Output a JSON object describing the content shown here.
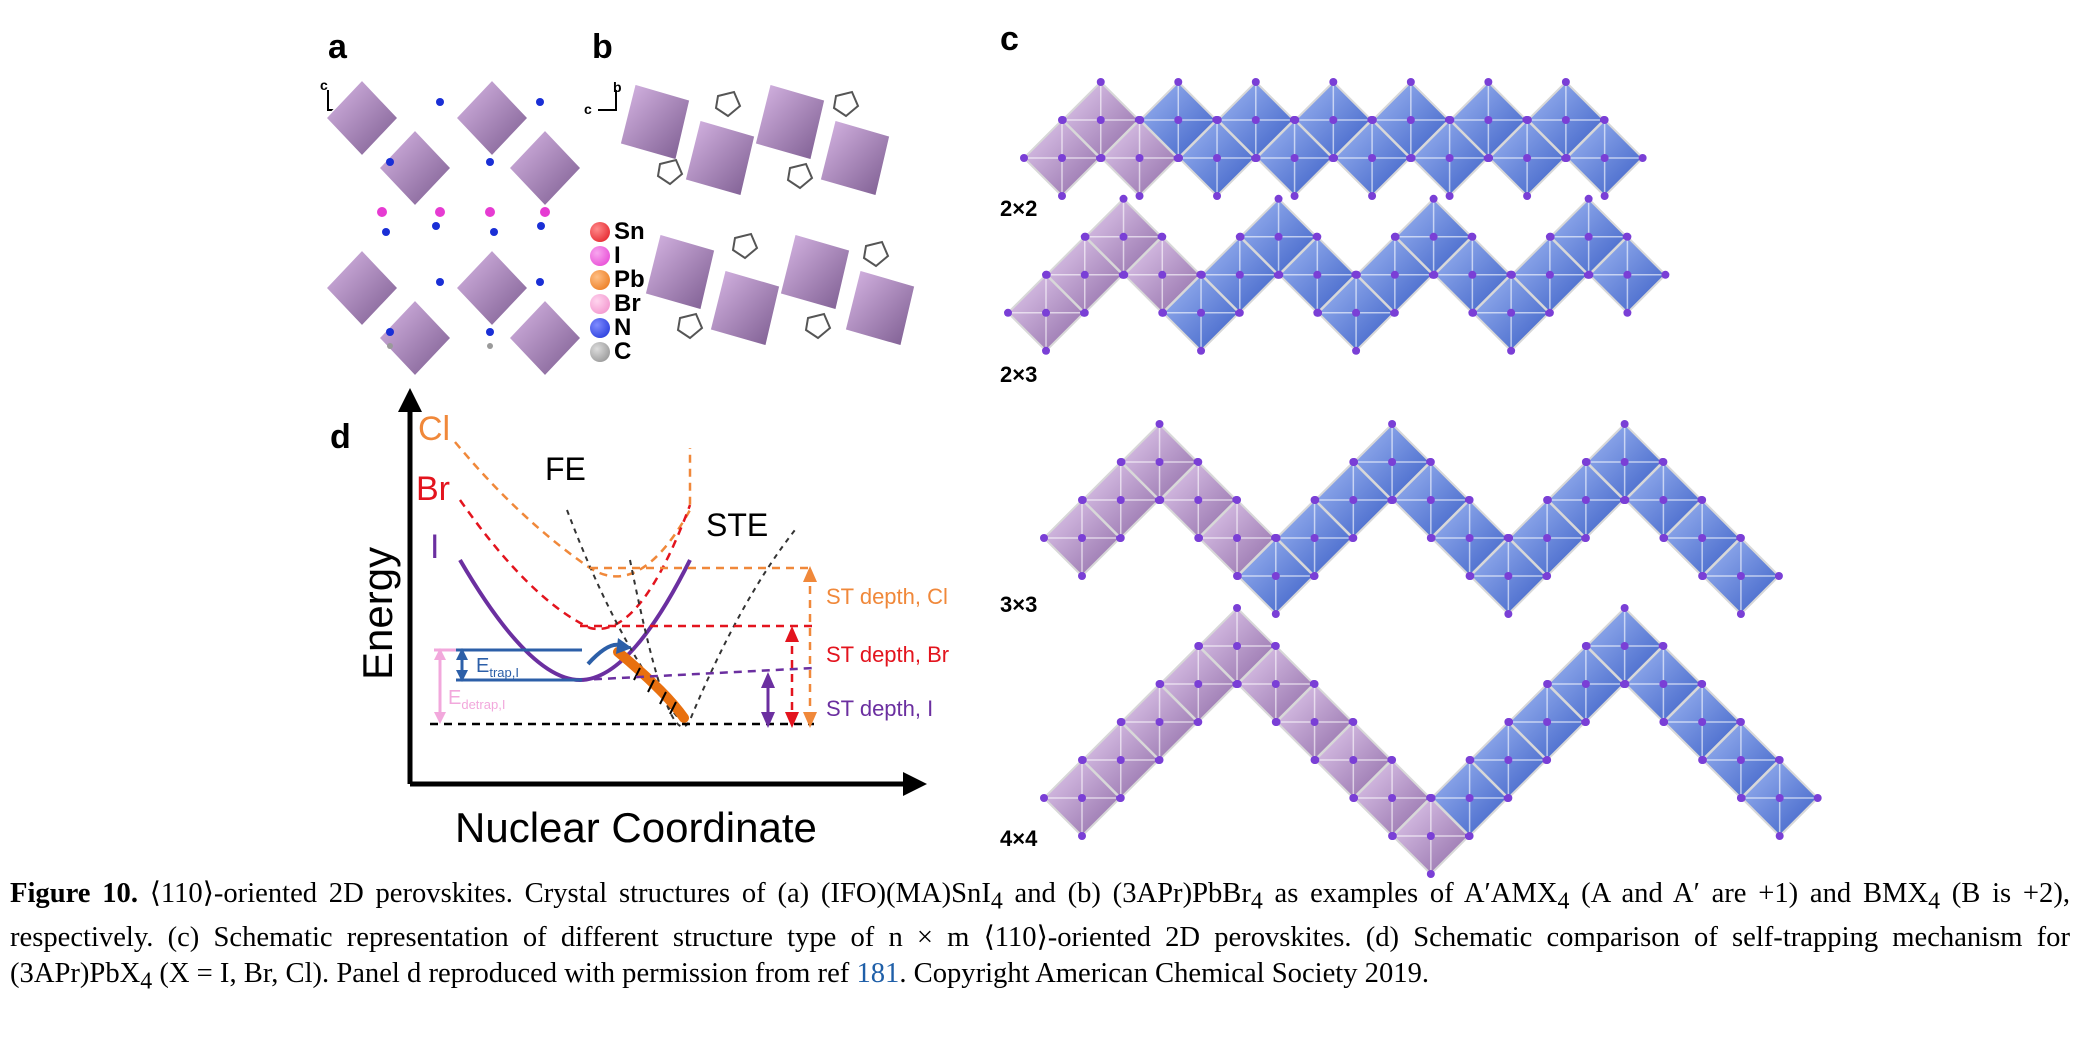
{
  "panels": {
    "a": "a",
    "b": "b",
    "c": "c",
    "d": "d"
  },
  "legend": [
    {
      "label": "Sn",
      "color": "#e0141e"
    },
    {
      "label": "I",
      "color": "#e63bd2"
    },
    {
      "label": "Pb",
      "color": "#e8700f"
    },
    {
      "label": "Br",
      "color": "#f08ac8"
    },
    {
      "label": "N",
      "color": "#1a2fd6"
    },
    {
      "label": "C",
      "color": "#9a9a9a"
    }
  ],
  "axes_ab": {
    "a_c": "c",
    "a_b": "b",
    "b_c": "c",
    "b_b": "b"
  },
  "sizes": [
    "2×2",
    "2×3",
    "3×3",
    "4×4"
  ],
  "diagram_d": {
    "y_label": "Energy",
    "x_label": "Nuclear Coordinate",
    "curves": {
      "cl": "Cl",
      "br": "Br",
      "i": "I"
    },
    "fe": "FE",
    "ste": "STE",
    "depth_cl": "ST depth, Cl",
    "depth_br": "ST depth, Br",
    "depth_i": "ST depth, I",
    "etrap": "E",
    "etrap_sub": "trap,I",
    "edetrap": "E",
    "edetrap_sub": "detrap,I",
    "colors": {
      "cl": "#f0883a",
      "br": "#e3141e",
      "i": "#6b2fa0",
      "blue": "#2c5fa8",
      "pink": "#f2a8dc"
    }
  },
  "caption": {
    "figure_label": "Figure 10.",
    "text_1": "⟨110⟩-oriented 2D perovskites. Crystal structures of (a) (IFO)(MA)SnI",
    "sub_1": "4",
    "text_2": " and (b) (3APr)PbBr",
    "sub_2": "4",
    "text_3": " as examples of A′AMX",
    "sub_3": "4",
    "text_4": " (A and A′ are +1) and BMX",
    "sub_4": "4",
    "text_5": " (B is +2), respectively. (c) Schematic representation of different structure type of n × m ⟨110⟩-oriented 2D perovskites. (d) Schematic comparison of self-trapping mechanism for (3APr)PbX",
    "sub_5": "4",
    "text_6": " (X = I, Br, Cl). Panel d reproduced with permission from ref ",
    "ref": "181",
    "text_7": ". Copyright American Chemical Society 2019."
  }
}
